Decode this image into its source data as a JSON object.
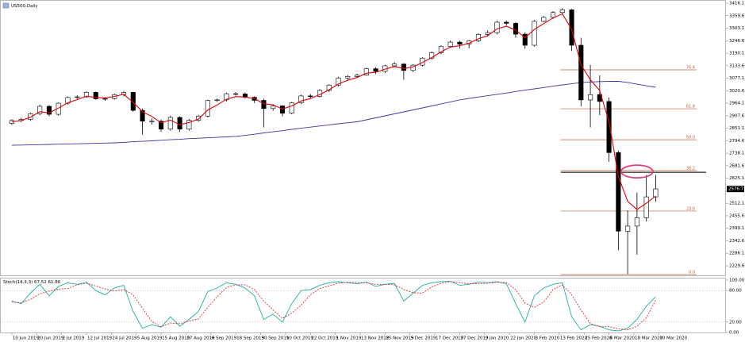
{
  "chart_data": {
    "type": "candlestick",
    "title": "US500,Daily",
    "x": [
      0,
      3,
      6,
      9,
      12,
      15,
      18,
      21,
      24,
      27,
      30,
      33,
      36,
      39,
      42,
      45,
      48,
      51,
      54,
      57,
      60,
      63,
      66,
      69,
      72,
      75,
      78,
      81,
      84,
      87,
      90,
      93,
      96,
      99,
      102,
      105,
      108,
      111,
      114,
      117,
      120,
      123,
      126,
      129,
      132,
      135,
      138,
      141,
      144,
      147,
      150,
      153,
      156,
      159,
      162,
      165,
      168,
      171,
      174,
      177,
      180,
      183,
      186,
      189,
      192,
      195,
      198,
      201,
      204,
      207
    ],
    "open": [
      2873,
      2886,
      2891,
      2917,
      2950,
      2914,
      2964,
      2990,
      2993,
      3013,
      2984,
      2985,
      3003,
      3013,
      2932,
      2883,
      2883,
      2847,
      2900,
      2847,
      2887,
      2906,
      2976,
      2979,
      3007,
      3006,
      2991,
      2977,
      2940,
      2952,
      2919,
      2966,
      2997,
      2995,
      3022,
      3046,
      3078,
      3085,
      3091,
      3120,
      3108,
      3133,
      3141,
      3112,
      3136,
      3168,
      3192,
      3221,
      3240,
      3231,
      3246,
      3275,
      3283,
      3330,
      3325,
      3276,
      3226,
      3334,
      3352,
      3374,
      3386,
      3226,
      2979,
      3003,
      2972,
      2741,
      2386,
      2409,
      2447,
      2541
    ],
    "high": [
      2892,
      2898,
      2922,
      2958,
      2955,
      2968,
      2995,
      3000,
      3018,
      3017,
      2992,
      3008,
      3020,
      3016,
      2940,
      2895,
      2890,
      2908,
      2905,
      2893,
      2912,
      2980,
      2985,
      3012,
      3015,
      3012,
      2995,
      2985,
      2960,
      2955,
      2970,
      3003,
      3006,
      3028,
      3050,
      3083,
      3092,
      3097,
      3124,
      3127,
      3138,
      3150,
      3145,
      3140,
      3172,
      3198,
      3226,
      3247,
      3247,
      3250,
      3280,
      3294,
      3337,
      3338,
      3330,
      3285,
      3340,
      3358,
      3380,
      3394,
      3390,
      3260,
      3137,
      3090,
      2990,
      2750,
      2480,
      2560,
      2640,
      2640
    ],
    "low": [
      2866,
      2878,
      2884,
      2910,
      2905,
      2908,
      2958,
      2982,
      2988,
      2980,
      2975,
      2980,
      2995,
      2925,
      2822,
      2868,
      2835,
      2840,
      2835,
      2840,
      2880,
      2900,
      2970,
      2972,
      2998,
      2985,
      2965,
      2855,
      2930,
      2905,
      2914,
      2960,
      2985,
      2990,
      3015,
      3040,
      3070,
      3080,
      3088,
      3095,
      3100,
      3128,
      3070,
      3105,
      3130,
      3160,
      3185,
      3215,
      3210,
      3212,
      3240,
      3265,
      3275,
      3315,
      3260,
      3210,
      3220,
      3330,
      3345,
      3365,
      3200,
      2950,
      2855,
      2910,
      2700,
      2300,
      2192,
      2280,
      2430,
      2520
    ],
    "close": [
      2886,
      2891,
      2917,
      2950,
      2914,
      2964,
      2990,
      2993,
      3013,
      2984,
      2985,
      3003,
      3013,
      2932,
      2883,
      2883,
      2847,
      2900,
      2847,
      2887,
      2906,
      2976,
      2979,
      3007,
      3006,
      2991,
      2977,
      2940,
      2952,
      2919,
      2966,
      2997,
      2995,
      3022,
      3046,
      3078,
      3085,
      3091,
      3120,
      3108,
      3133,
      3141,
      3112,
      3136,
      3168,
      3192,
      3221,
      3240,
      3231,
      3246,
      3275,
      3283,
      3330,
      3325,
      3276,
      3226,
      3334,
      3352,
      3374,
      3386,
      3226,
      2979,
      3003,
      2972,
      2741,
      2386,
      2409,
      2447,
      2541,
      2577
    ],
    "overlays": [
      {
        "color": "#e00000",
        "values": [
          2880,
          2886,
          2901,
          2926,
          2920,
          2942,
          2966,
          2980,
          2996,
          2990,
          2988,
          2995,
          3004,
          2968,
          2926,
          2904,
          2876,
          2888,
          2867,
          2877,
          2892,
          2934,
          2956,
          2982,
          2994,
          2992,
          2985,
          2962,
          2957,
          2938,
          2952,
          2974,
          2985,
          3003,
          3025,
          3051,
          3068,
          3080,
          3100,
          3104,
          3118,
          3130,
          3121,
          3128,
          3148,
          3170,
          3196,
          3218,
          3224,
          3235,
          3255,
          3269,
          3300,
          3312,
          3294,
          3260,
          3297,
          3324,
          3349,
          3368,
          3297,
          3138,
          3070,
          3021,
          2881,
          2634,
          2521,
          2484,
          2512,
          2545
        ]
      },
      {
        "color": "#3a3aa0",
        "values": [
          2774,
          2775,
          2776,
          2777,
          2778,
          2779,
          2780,
          2781,
          2782,
          2783,
          2784,
          2785,
          2787,
          2790,
          2792,
          2794,
          2797,
          2799,
          2801,
          2804,
          2806,
          2808,
          2810,
          2812,
          2814,
          2819,
          2824,
          2830,
          2835,
          2840,
          2846,
          2851,
          2856,
          2861,
          2866,
          2871,
          2876,
          2880,
          2889,
          2898,
          2907,
          2916,
          2925,
          2934,
          2943,
          2952,
          2961,
          2970,
          2979,
          2986,
          2992,
          2998,
          3004,
          3010,
          3017,
          3023,
          3029,
          3035,
          3041,
          3047,
          3052,
          3058,
          3060,
          3062,
          3063,
          3063,
          3058,
          3050,
          3043,
          3036
        ]
      }
    ],
    "fibonacci": {
      "color": "#c0603a",
      "levels": [
        {
          "label": "76.4",
          "value": 3115
        },
        {
          "label": "61.8",
          "value": 2939
        },
        {
          "label": "50.0",
          "value": 2799
        },
        {
          "label": "38.2",
          "value": 2660
        },
        {
          "label": "23.6",
          "value": 2477
        },
        {
          "label": "0.0",
          "value": 2190
        }
      ]
    },
    "resistance": 2652,
    "current_price": 2576.7,
    "xlim": [
      -3.8,
      229.6
    ],
    "ylim": [
      2182.9,
      3430.4
    ],
    "yticks": [
      3416.1,
      3359.6,
      3303.1,
      3246.6,
      3190.1,
      3133.6,
      3077.1,
      3020.6,
      2964.1,
      2907.6,
      2851.1,
      2794.6,
      2738.1,
      2681.6,
      2625.1,
      2568.6,
      2512.1,
      2455.6,
      2399.1,
      2342.6,
      2286.1,
      2229.6
    ],
    "xticks": [
      {
        "value": 0,
        "label": "10 Jun 2019"
      },
      {
        "value": 8,
        "label": "20 Jun 2019"
      },
      {
        "value": 16,
        "label": "2 Jul 2019"
      },
      {
        "value": 24,
        "label": "12 Jul 2019"
      },
      {
        "value": 32,
        "label": "24 Jul 2019"
      },
      {
        "value": 40,
        "label": "5 Aug 2019"
      },
      {
        "value": 48,
        "label": "15 Aug 2019"
      },
      {
        "value": 56,
        "label": "27 Aug 2019"
      },
      {
        "value": 64,
        "label": "6 Sep 2019"
      },
      {
        "value": 72,
        "label": "18 Sep 2019"
      },
      {
        "value": 80,
        "label": "30 Sep 2019"
      },
      {
        "value": 88,
        "label": "10 Oct 2019"
      },
      {
        "value": 96,
        "label": "22 Oct 2019"
      },
      {
        "value": 104,
        "label": "1 Nov 2019"
      },
      {
        "value": 112,
        "label": "13 Nov 2019"
      },
      {
        "value": 120,
        "label": "25 Nov 2019"
      },
      {
        "value": 128,
        "label": "5 Dec 2019"
      },
      {
        "value": 136,
        "label": "17 Dec 2019"
      },
      {
        "value": 144,
        "label": "27 Dec 2019"
      },
      {
        "value": 152,
        "label": "9 Jan 2020"
      },
      {
        "value": 160,
        "label": "22 Jan 2020"
      },
      {
        "value": 168,
        "label": "3 Feb 2020"
      },
      {
        "value": 176,
        "label": "13 Feb 2020"
      },
      {
        "value": 184,
        "label": "25 Feb 2020"
      },
      {
        "value": 192,
        "label": "6 Mar 2020"
      },
      {
        "value": 200,
        "label": "18 Mar 2020"
      },
      {
        "value": 208,
        "label": "30 Mar 2020"
      }
    ],
    "oscillator": {
      "title": "Stoch(14,3,3) 67.52 61.86",
      "ylim": [
        0,
        100
      ],
      "yticks": [
        {
          "value": 100,
          "label": "100.00"
        },
        {
          "value": 80,
          "label": "80.00"
        },
        {
          "value": 20,
          "label": "20.00"
        },
        {
          "value": 0,
          "label": "0.00"
        }
      ],
      "series": [
        {
          "color": "#20b0a0",
          "values": [
            60,
            55,
            75,
            92,
            70,
            88,
            95,
            92,
            96,
            80,
            72,
            85,
            90,
            40,
            8,
            15,
            10,
            30,
            12,
            25,
            40,
            78,
            85,
            95,
            92,
            85,
            70,
            25,
            35,
            20,
            55,
            80,
            82,
            90,
            95,
            97,
            95,
            93,
            96,
            88,
            92,
            94,
            60,
            75,
            90,
            95,
            97,
            98,
            90,
            92,
            96,
            95,
            97,
            93,
            55,
            20,
            70,
            85,
            92,
            95,
            30,
            5,
            15,
            12,
            5,
            3,
            8,
            25,
            50,
            68
          ]
        },
        {
          "color": "#e03030",
          "values": [
            58,
            57,
            63,
            74,
            79,
            83,
            84,
            91,
            94,
            89,
            83,
            79,
            82,
            72,
            46,
            21,
            11,
            18,
            17,
            22,
            26,
            48,
            68,
            86,
            91,
            91,
            82,
            60,
            43,
            27,
            37,
            52,
            72,
            84,
            89,
            94,
            96,
            95,
            95,
            92,
            92,
            91,
            82,
            76,
            75,
            87,
            94,
            97,
            95,
            93,
            93,
            94,
            96,
            95,
            82,
            56,
            48,
            58,
            82,
            91,
            72,
            43,
            17,
            11,
            11,
            7,
            5,
            12,
            28,
            62
          ]
        }
      ]
    }
  }
}
